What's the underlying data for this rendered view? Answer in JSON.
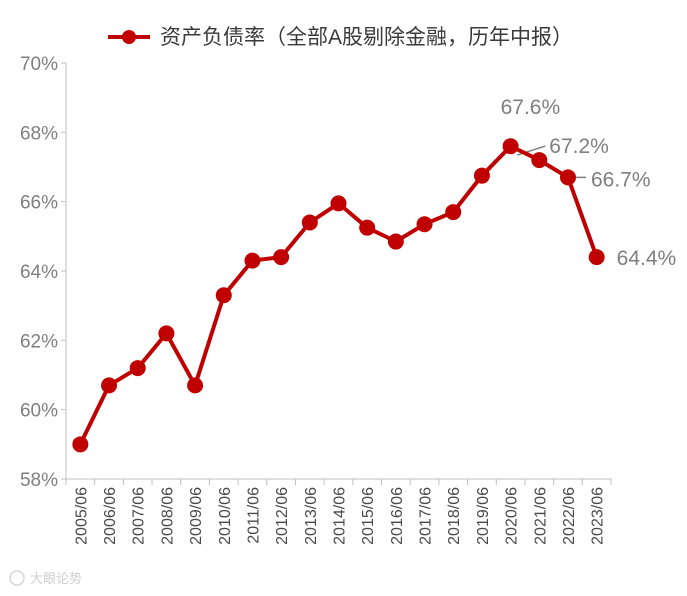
{
  "chart_data": {
    "type": "line",
    "title": "",
    "xlabel": "",
    "ylabel": "",
    "categories": [
      "2005/06",
      "2006/06",
      "2007/06",
      "2008/06",
      "2009/06",
      "2010/06",
      "2011/06",
      "2012/06",
      "2013/06",
      "2014/06",
      "2015/06",
      "2016/06",
      "2017/06",
      "2018/06",
      "2019/06",
      "2020/06",
      "2021/06",
      "2022/06",
      "2023/06"
    ],
    "series": [
      {
        "name": "资产负债率（全部A股剔除金融，历年中报）",
        "values": [
          59.0,
          60.7,
          61.2,
          62.2,
          60.7,
          63.3,
          64.3,
          64.4,
          65.4,
          65.95,
          65.25,
          64.85,
          65.35,
          65.7,
          66.75,
          67.6,
          67.2,
          66.7,
          64.4
        ]
      }
    ],
    "ylim": [
      58,
      70
    ],
    "yticks": [
      "58%",
      "60%",
      "62%",
      "64%",
      "66%",
      "68%",
      "70%"
    ],
    "data_labels": [
      {
        "index": 15,
        "text": "67.6%"
      },
      {
        "index": 16,
        "text": "67.2%"
      },
      {
        "index": 17,
        "text": "66.7%"
      },
      {
        "index": 18,
        "text": "64.4%"
      }
    ],
    "legend_position": "top",
    "grid": false,
    "colors": {
      "series": "#c00000",
      "axis": "#bfbfbf",
      "label": "#7f7f7f"
    }
  },
  "watermark": "大眼论势"
}
